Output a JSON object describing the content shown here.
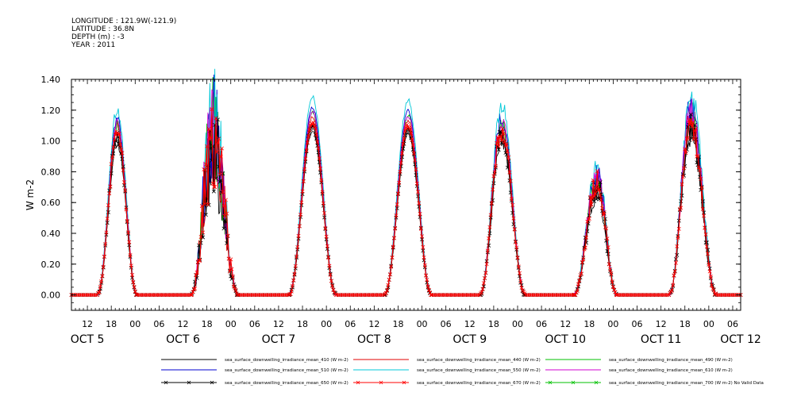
{
  "header": {
    "lines": [
      "LONGITUDE : 121.9W(-121.9)",
      "LATITUDE : 36.8N",
      "DEPTH (m) : -3",
      "YEAR : 2011"
    ]
  },
  "chart_data": {
    "type": "line",
    "ylabel": "W m-2",
    "ylim": [
      -0.1,
      1.4
    ],
    "yticks": [
      0.0,
      0.2,
      0.4,
      0.6,
      0.8,
      1.0,
      1.2,
      1.4
    ],
    "ytick_labels": [
      "0.00",
      "0.20",
      "0.40",
      "0.60",
      "0.80",
      "1.00",
      "1.20",
      "1.40"
    ],
    "x_unit": "hours since Oct 4 2011 00:00",
    "xlim": [
      8,
      176
    ],
    "hour_ticks": [
      12,
      18,
      24,
      30,
      36,
      42,
      48,
      54,
      60,
      66,
      72,
      78,
      84,
      90,
      96,
      102,
      108,
      114,
      120,
      126,
      132,
      138,
      144,
      150,
      156,
      162,
      168,
      174
    ],
    "hour_tick_labels": [
      "12",
      "18",
      "00",
      "06",
      "12",
      "18",
      "00",
      "06",
      "12",
      "18",
      "00",
      "06",
      "12",
      "18",
      "00",
      "06",
      "12",
      "18",
      "00",
      "06",
      "12",
      "18",
      "00",
      "06",
      "12",
      "18",
      "00",
      "06"
    ],
    "date_labels": [
      {
        "text": "OCT  5",
        "x": 12
      },
      {
        "text": "OCT  6",
        "x": 36
      },
      {
        "text": "OCT  7",
        "x": 60
      },
      {
        "text": "OCT  8",
        "x": 84
      },
      {
        "text": "OCT  9",
        "x": 108
      },
      {
        "text": "OCT 10",
        "x": 132
      },
      {
        "text": "OCT 11",
        "x": 156
      },
      {
        "text": "OCT 12",
        "x": 176
      }
    ],
    "days": [
      {
        "start": 14.5,
        "peak_time": 19.5,
        "end": 24.5,
        "peak": 1.05,
        "noise": 0.04
      },
      {
        "start": 38.0,
        "peak_time": 43.5,
        "end": 50.0,
        "peak": 1.0,
        "noise": 0.35
      },
      {
        "start": 62.5,
        "peak_time": 68.5,
        "end": 74.5,
        "peak": 1.12,
        "noise": 0.01
      },
      {
        "start": 86.5,
        "peak_time": 92.5,
        "end": 98.5,
        "peak": 1.1,
        "noise": 0.01
      },
      {
        "start": 110.5,
        "peak_time": 116.0,
        "end": 122.0,
        "peak": 1.07,
        "noise": 0.06
      },
      {
        "start": 134.0,
        "peak_time": 140.0,
        "end": 145.0,
        "peak": 0.72,
        "noise": 0.12
      },
      {
        "start": 158.0,
        "peak_time": 163.5,
        "end": 170.0,
        "peak": 1.12,
        "noise": 0.1
      }
    ],
    "series": [
      {
        "name": "sea_surface_downwelling_irradiance_mean_410 (W m-2)",
        "color": "#000000",
        "scale": 0.95,
        "marker": false
      },
      {
        "name": "sea_surface_downwelling_irradiance_mean_440 (W m-2)",
        "color": "#e00000",
        "scale": 1.03,
        "marker": false
      },
      {
        "name": "sea_surface_downwelling_irradiance_mean_490 (W m-2)",
        "color": "#00c000",
        "scale": 1.06,
        "marker": false
      },
      {
        "name": "sea_surface_downwelling_irradiance_mean_510 (W m-2)",
        "color": "#0000d0",
        "scale": 1.09,
        "marker": false
      },
      {
        "name": "sea_surface_downwelling_irradiance_mean_550 (W m-2)",
        "color": "#00c8d8",
        "scale": 1.15,
        "marker": false
      },
      {
        "name": "sea_surface_downwelling_irradiance_mean_610 (W m-2)",
        "color": "#d000d0",
        "scale": 1.06,
        "marker": false
      },
      {
        "name": "sea_surface_downwelling_irradiance_mean_650 (W m-2)",
        "color": "#000000",
        "scale": 0.98,
        "marker": true
      },
      {
        "name": "sea_surface_downwelling_irradiance_mean_670 (W m-2)",
        "color": "#ff0000",
        "scale": 1.0,
        "marker": true
      },
      {
        "name": "sea_surface_downwelling_irradiance_mean_700 (W m-2) No Valid Data",
        "color": "#00c000",
        "scale": 0,
        "marker": true
      }
    ]
  }
}
